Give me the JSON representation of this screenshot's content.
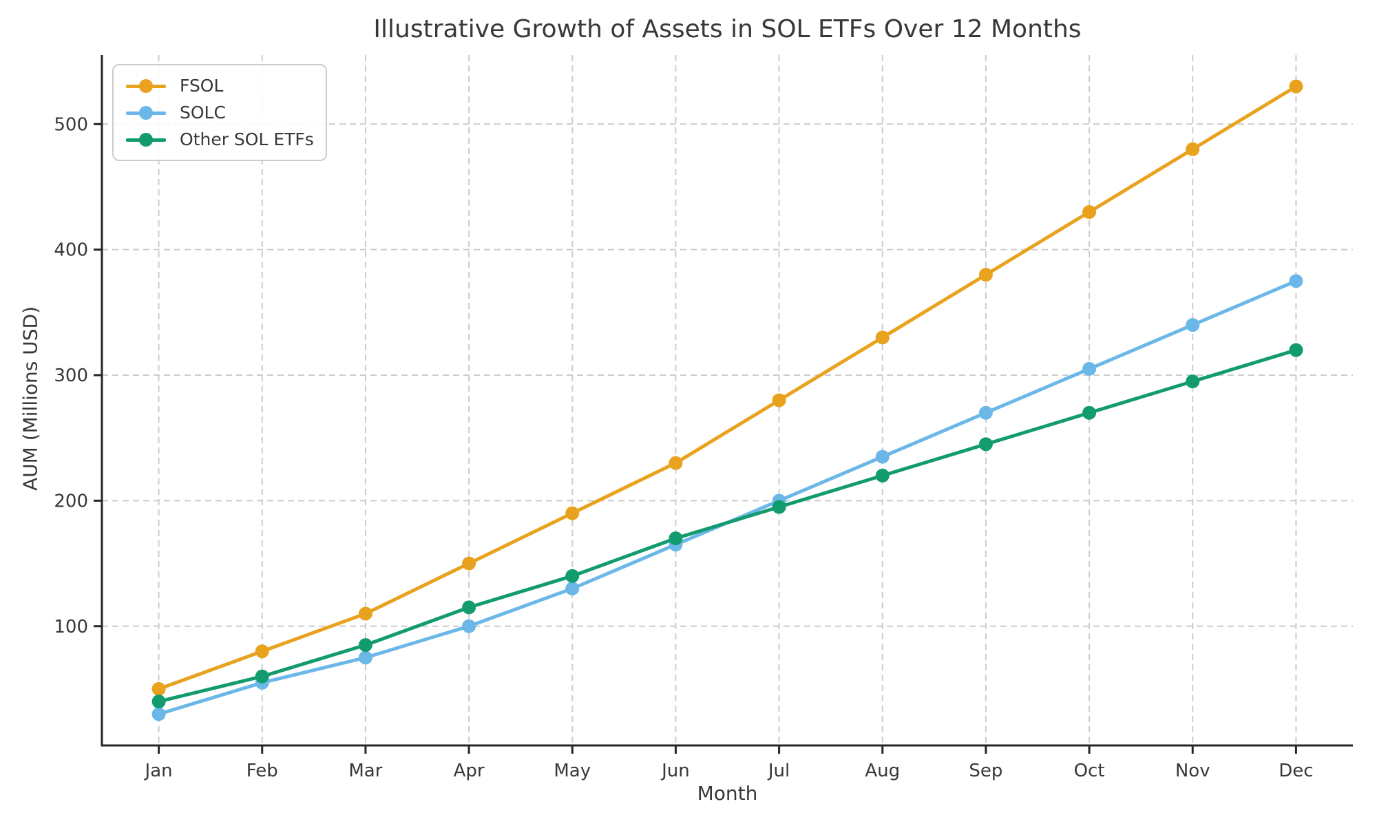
{
  "chart_data": {
    "type": "line",
    "title": "Illustrative Growth of Assets in SOL ETFs Over 12 Months",
    "xlabel": "Month",
    "ylabel": "AUM (Millions USD)",
    "categories": [
      "Jan",
      "Feb",
      "Mar",
      "Apr",
      "May",
      "Jun",
      "Jul",
      "Aug",
      "Sep",
      "Oct",
      "Nov",
      "Dec"
    ],
    "series": [
      {
        "name": "FSOL",
        "color": "#E8A21D",
        "values": [
          50,
          80,
          110,
          150,
          190,
          230,
          280,
          330,
          380,
          430,
          480,
          530
        ]
      },
      {
        "name": "SOLC",
        "color": "#6BB8E8",
        "values": [
          30,
          55,
          75,
          100,
          130,
          165,
          200,
          235,
          270,
          305,
          340,
          375
        ]
      },
      {
        "name": "Other SOL ETFs",
        "color": "#129B6D",
        "values": [
          40,
          60,
          85,
          115,
          140,
          170,
          195,
          220,
          245,
          270,
          295,
          320
        ]
      }
    ],
    "yticks": [
      100,
      200,
      300,
      400,
      500
    ],
    "ylim": [
      5,
      555
    ],
    "xlim": [
      -0.55,
      11.55
    ],
    "grid": true,
    "grid_style": "dashed",
    "legend_position": "upper left",
    "marker": "circle"
  },
  "colors": {
    "grid": "#cccccc",
    "spine": "#262626",
    "text": "#383838"
  }
}
